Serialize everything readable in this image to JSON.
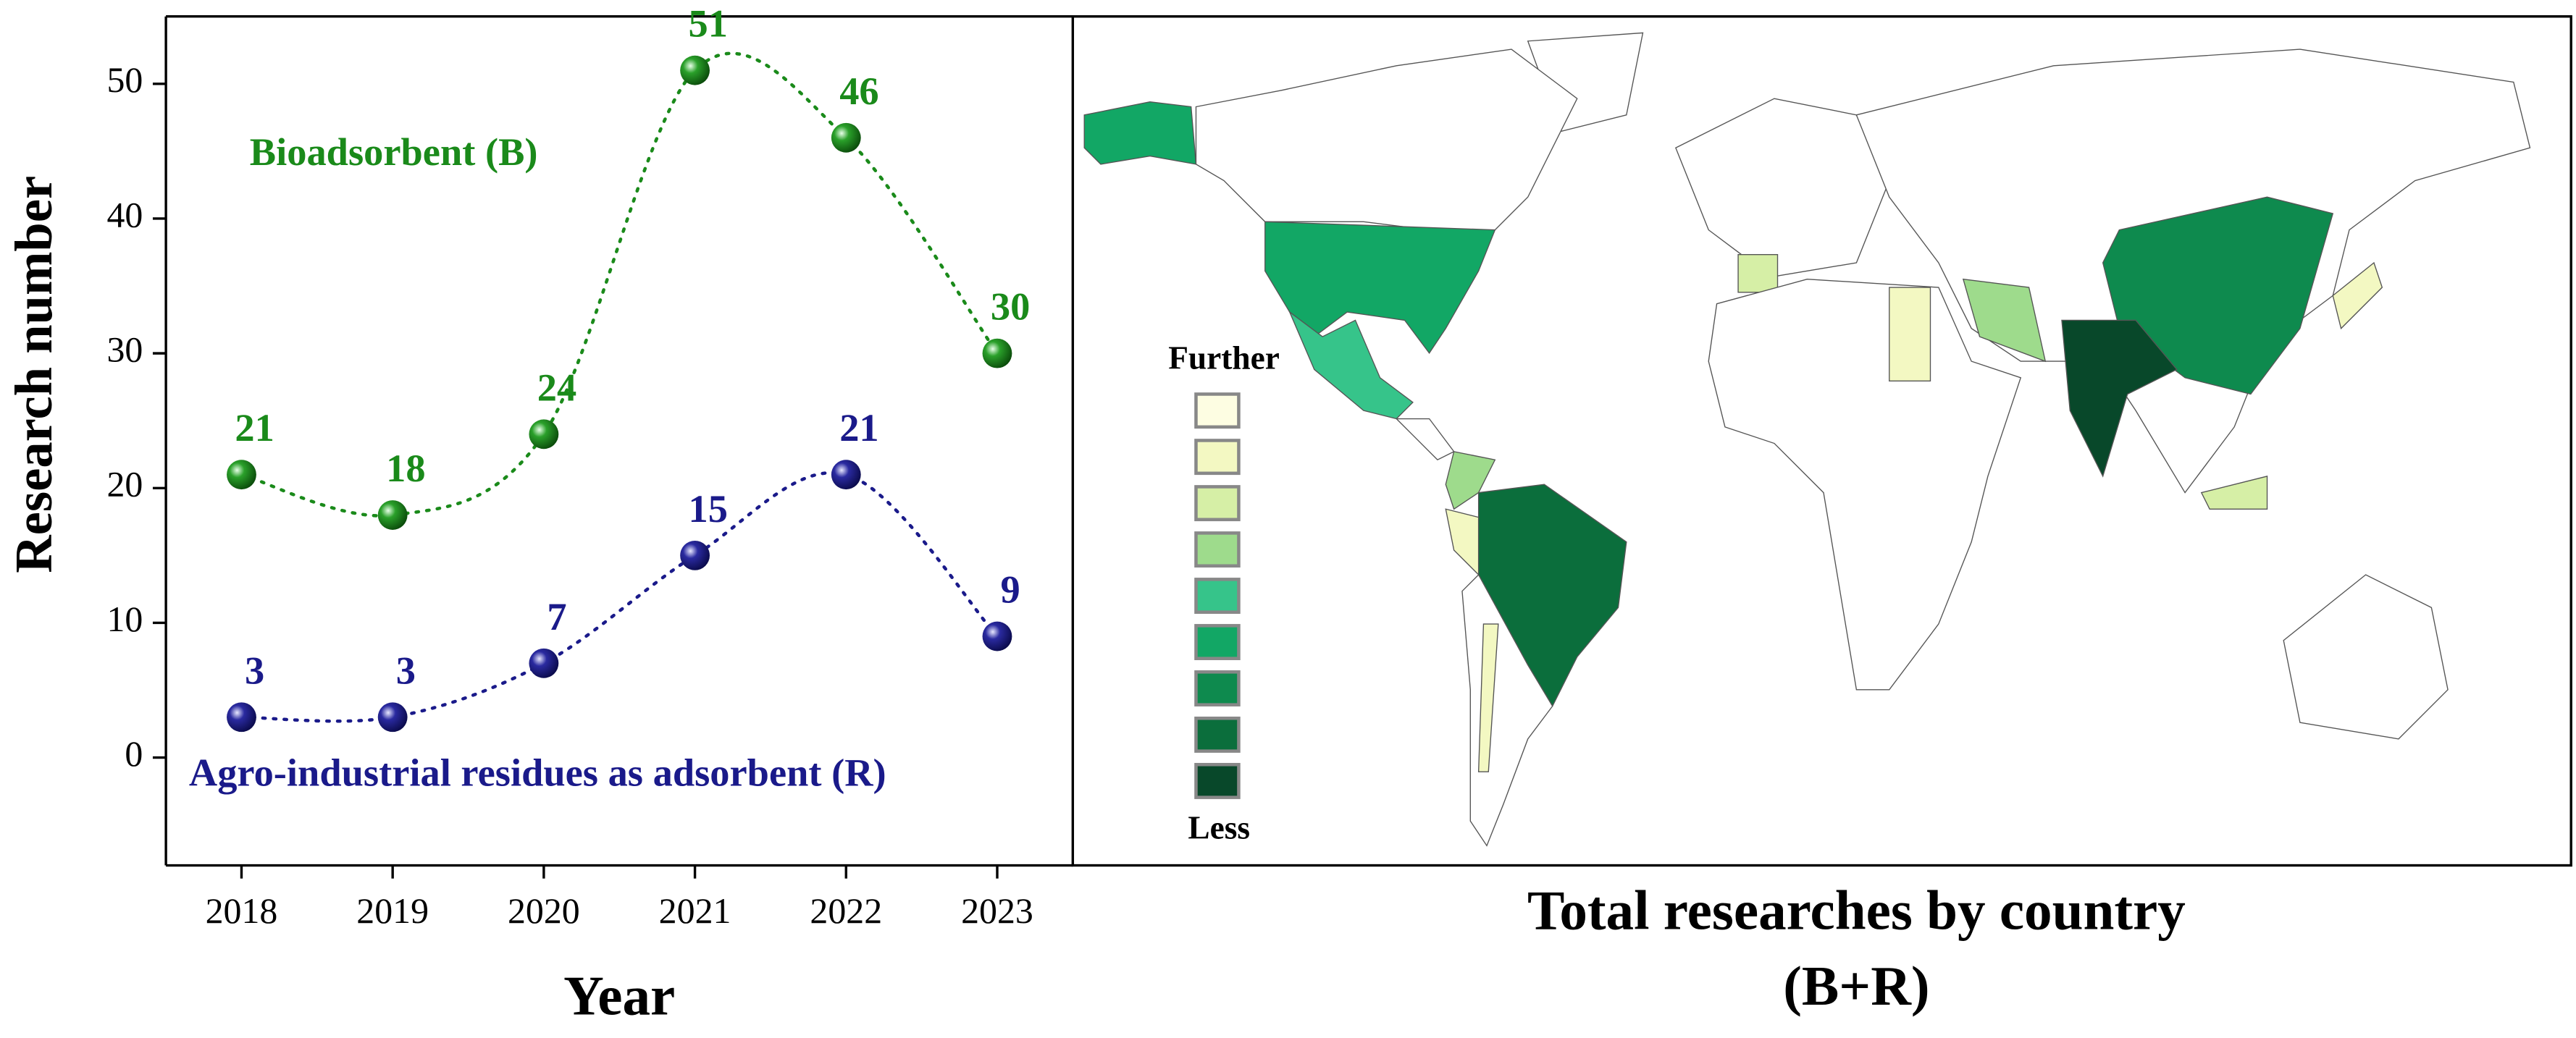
{
  "chart_data": {
    "type": "line",
    "y_label": "Research number",
    "x_label": "Year",
    "x": [
      2018,
      2019,
      2020,
      2021,
      2022,
      2023
    ],
    "xlim": [
      2017.5,
      2023.5
    ],
    "xticks": [
      2018,
      2019,
      2020,
      2021,
      2022,
      2023
    ],
    "ylim": [
      -8,
      55
    ],
    "yticks": [
      0,
      10,
      20,
      30,
      40,
      50
    ],
    "series": [
      {
        "name": "Bioadsorbent (B)",
        "color": "#1a8a1a",
        "values": [
          21,
          18,
          24,
          51,
          46,
          30
        ]
      },
      {
        "name": "Agro-industrial residues as adsorbent (R)",
        "color": "#1a1a8a",
        "values": [
          3,
          3,
          7,
          15,
          21,
          9
        ]
      }
    ]
  },
  "map": {
    "title": [
      "Total researches by country",
      "(B+R)"
    ],
    "legend_top": "Further",
    "legend_bottom": "Less",
    "legend_colors": [
      "#fdfde2",
      "#f3f8c2",
      "#d6efa6",
      "#9edb8c",
      "#36c48a",
      "#12a765",
      "#0e8a4e",
      "#0b6e3c",
      "#08482a"
    ]
  }
}
